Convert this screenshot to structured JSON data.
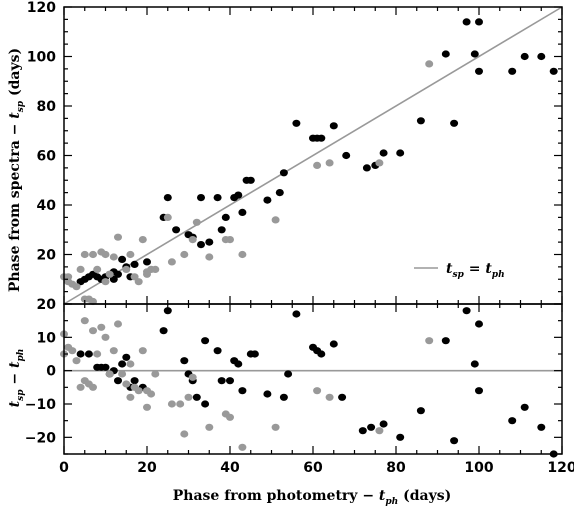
{
  "chart_data": [
    {
      "type": "scatter",
      "title": "",
      "xlabel": "Phase from photometry − t_ph (days)",
      "ylabel": "Phase from spectra − t_sp (days)",
      "ylabel_text": "Phase from spectra − ",
      "ylabel_var": "t",
      "ylabel_sub": "sp",
      "ylabel_tail": " (days)",
      "xlim": [
        0,
        120
      ],
      "ylim": [
        0,
        120
      ],
      "xticks": [
        "0",
        "20",
        "40",
        "60",
        "80",
        "100",
        "120"
      ],
      "yticks": [
        "20",
        "40",
        "60",
        "80",
        "100",
        "120"
      ],
      "legend": {
        "position": "lower-right",
        "label": "t_sp = t_ph",
        "lhs": "t",
        "lhs_sub": "sp",
        "eq": " = ",
        "rhs": "t",
        "rhs_sub": "ph",
        "line_color": "#999999"
      },
      "reference_line": {
        "from": [
          0,
          0
        ],
        "to": [
          120,
          120
        ],
        "color": "#999999"
      },
      "series": [
        {
          "color": "#000000",
          "points": [
            [
              4,
              9
            ],
            [
              5,
              10
            ],
            [
              6,
              11
            ],
            [
              7,
              12
            ],
            [
              8,
              11
            ],
            [
              9,
              10
            ],
            [
              10,
              11
            ],
            [
              11,
              12
            ],
            [
              12,
              10
            ],
            [
              12,
              13
            ],
            [
              13,
              12
            ],
            [
              14,
              18
            ],
            [
              15,
              15
            ],
            [
              16,
              11
            ],
            [
              17,
              16
            ],
            [
              20,
              17
            ],
            [
              24,
              35
            ],
            [
              25,
              43
            ],
            [
              27,
              30
            ],
            [
              30,
              28
            ],
            [
              31,
              27
            ],
            [
              33,
              43
            ],
            [
              33,
              24
            ],
            [
              35,
              25
            ],
            [
              37,
              43
            ],
            [
              38,
              30
            ],
            [
              39,
              35
            ],
            [
              41,
              43
            ],
            [
              42,
              44
            ],
            [
              43,
              37
            ],
            [
              44,
              50
            ],
            [
              45,
              50
            ],
            [
              49,
              42
            ],
            [
              52,
              45
            ],
            [
              53,
              53
            ],
            [
              56,
              73
            ],
            [
              60,
              67
            ],
            [
              61,
              67
            ],
            [
              62,
              67
            ],
            [
              65,
              72
            ],
            [
              68,
              60
            ],
            [
              73,
              55
            ],
            [
              75,
              56
            ],
            [
              77,
              61
            ],
            [
              81,
              61
            ],
            [
              86,
              74
            ],
            [
              92,
              101
            ],
            [
              94,
              73
            ],
            [
              97,
              114
            ],
            [
              99,
              101
            ],
            [
              100,
              114
            ],
            [
              100,
              94
            ],
            [
              108,
              94
            ],
            [
              111,
              100
            ],
            [
              115,
              100
            ],
            [
              118,
              94
            ]
          ]
        },
        {
          "color": "#999999",
          "points": [
            [
              0,
              11
            ],
            [
              1,
              11
            ],
            [
              1,
              9
            ],
            [
              2,
              8
            ],
            [
              3,
              7
            ],
            [
              4,
              14
            ],
            [
              5,
              20
            ],
            [
              5,
              2
            ],
            [
              6,
              2
            ],
            [
              7,
              20
            ],
            [
              7,
              1
            ],
            [
              8,
              14
            ],
            [
              9,
              21
            ],
            [
              10,
              20
            ],
            [
              10,
              9
            ],
            [
              11,
              12
            ],
            [
              12,
              19
            ],
            [
              13,
              27
            ],
            [
              15,
              14
            ],
            [
              16,
              20
            ],
            [
              17,
              11
            ],
            [
              18,
              9
            ],
            [
              19,
              26
            ],
            [
              20,
              13
            ],
            [
              20,
              12
            ],
            [
              21,
              14
            ],
            [
              22,
              14
            ],
            [
              25,
              35
            ],
            [
              26,
              17
            ],
            [
              29,
              20
            ],
            [
              31,
              26
            ],
            [
              32,
              33
            ],
            [
              35,
              19
            ],
            [
              39,
              26
            ],
            [
              40,
              26
            ],
            [
              43,
              20
            ],
            [
              51,
              34
            ],
            [
              61,
              56
            ],
            [
              64,
              57
            ],
            [
              76,
              57
            ],
            [
              88,
              97
            ]
          ]
        }
      ]
    },
    {
      "type": "scatter",
      "title": "",
      "xlabel": "Phase from photometry − t_ph (days)",
      "ylabel": "t_sp − t_ph",
      "ylabel_lhs": "t",
      "ylabel_lhs_sub": "sp",
      "ylabel_op": " − ",
      "ylabel_rhs": "t",
      "ylabel_rhs_sub": "ph",
      "xlim": [
        0,
        120
      ],
      "ylim": [
        -25,
        20
      ],
      "yticks": [
        "−20",
        "−10",
        "0",
        "10",
        "20"
      ],
      "reference_line": {
        "y": 0,
        "color": "#999999"
      },
      "series": [
        {
          "color": "#000000",
          "points": [
            [
              4,
              5
            ],
            [
              6,
              5
            ],
            [
              8,
              1
            ],
            [
              9,
              1
            ],
            [
              10,
              1
            ],
            [
              11,
              -1
            ],
            [
              12,
              0
            ],
            [
              13,
              -3
            ],
            [
              14,
              2
            ],
            [
              15,
              4
            ],
            [
              16,
              -5
            ],
            [
              17,
              -3
            ],
            [
              19,
              -5
            ],
            [
              24,
              12
            ],
            [
              25,
              18
            ],
            [
              29,
              3
            ],
            [
              30,
              -1
            ],
            [
              31,
              -3
            ],
            [
              32,
              -8
            ],
            [
              34,
              -10
            ],
            [
              34,
              9
            ],
            [
              37,
              6
            ],
            [
              38,
              -3
            ],
            [
              40,
              -3
            ],
            [
              41,
              3
            ],
            [
              42,
              2
            ],
            [
              43,
              -6
            ],
            [
              45,
              5
            ],
            [
              46,
              5
            ],
            [
              49,
              -7
            ],
            [
              53,
              -8
            ],
            [
              54,
              -1
            ],
            [
              56,
              17
            ],
            [
              60,
              7
            ],
            [
              61,
              6
            ],
            [
              62,
              5
            ],
            [
              65,
              8
            ],
            [
              67,
              -8
            ],
            [
              72,
              -18
            ],
            [
              74,
              -17
            ],
            [
              77,
              -16
            ],
            [
              81,
              -20
            ],
            [
              86,
              -12
            ],
            [
              92,
              9
            ],
            [
              94,
              -21
            ],
            [
              97,
              18
            ],
            [
              99,
              2
            ],
            [
              100,
              14
            ],
            [
              100,
              -6
            ],
            [
              108,
              -15
            ],
            [
              111,
              -11
            ],
            [
              115,
              -17
            ],
            [
              118,
              -25
            ]
          ]
        },
        {
          "color": "#999999",
          "points": [
            [
              0,
              11
            ],
            [
              0,
              5
            ],
            [
              1,
              7
            ],
            [
              2,
              6
            ],
            [
              3,
              3
            ],
            [
              4,
              -5
            ],
            [
              5,
              15
            ],
            [
              5,
              -3
            ],
            [
              6,
              -4
            ],
            [
              7,
              12
            ],
            [
              7,
              -5
            ],
            [
              8,
              5
            ],
            [
              9,
              13
            ],
            [
              10,
              10
            ],
            [
              11,
              -1
            ],
            [
              12,
              6
            ],
            [
              13,
              14
            ],
            [
              14,
              -1
            ],
            [
              15,
              -4
            ],
            [
              16,
              2
            ],
            [
              16,
              -8
            ],
            [
              17,
              -5
            ],
            [
              18,
              -6
            ],
            [
              19,
              6
            ],
            [
              20,
              -11
            ],
            [
              20,
              -6
            ],
            [
              21,
              -7
            ],
            [
              22,
              -1
            ],
            [
              26,
              -10
            ],
            [
              28,
              -10
            ],
            [
              29,
              -19
            ],
            [
              30,
              -8
            ],
            [
              31,
              -2
            ],
            [
              35,
              -17
            ],
            [
              39,
              -13
            ],
            [
              40,
              -14
            ],
            [
              43,
              -23
            ],
            [
              51,
              -17
            ],
            [
              61,
              -6
            ],
            [
              64,
              -8
            ],
            [
              76,
              -18
            ],
            [
              88,
              9
            ]
          ]
        }
      ]
    }
  ]
}
